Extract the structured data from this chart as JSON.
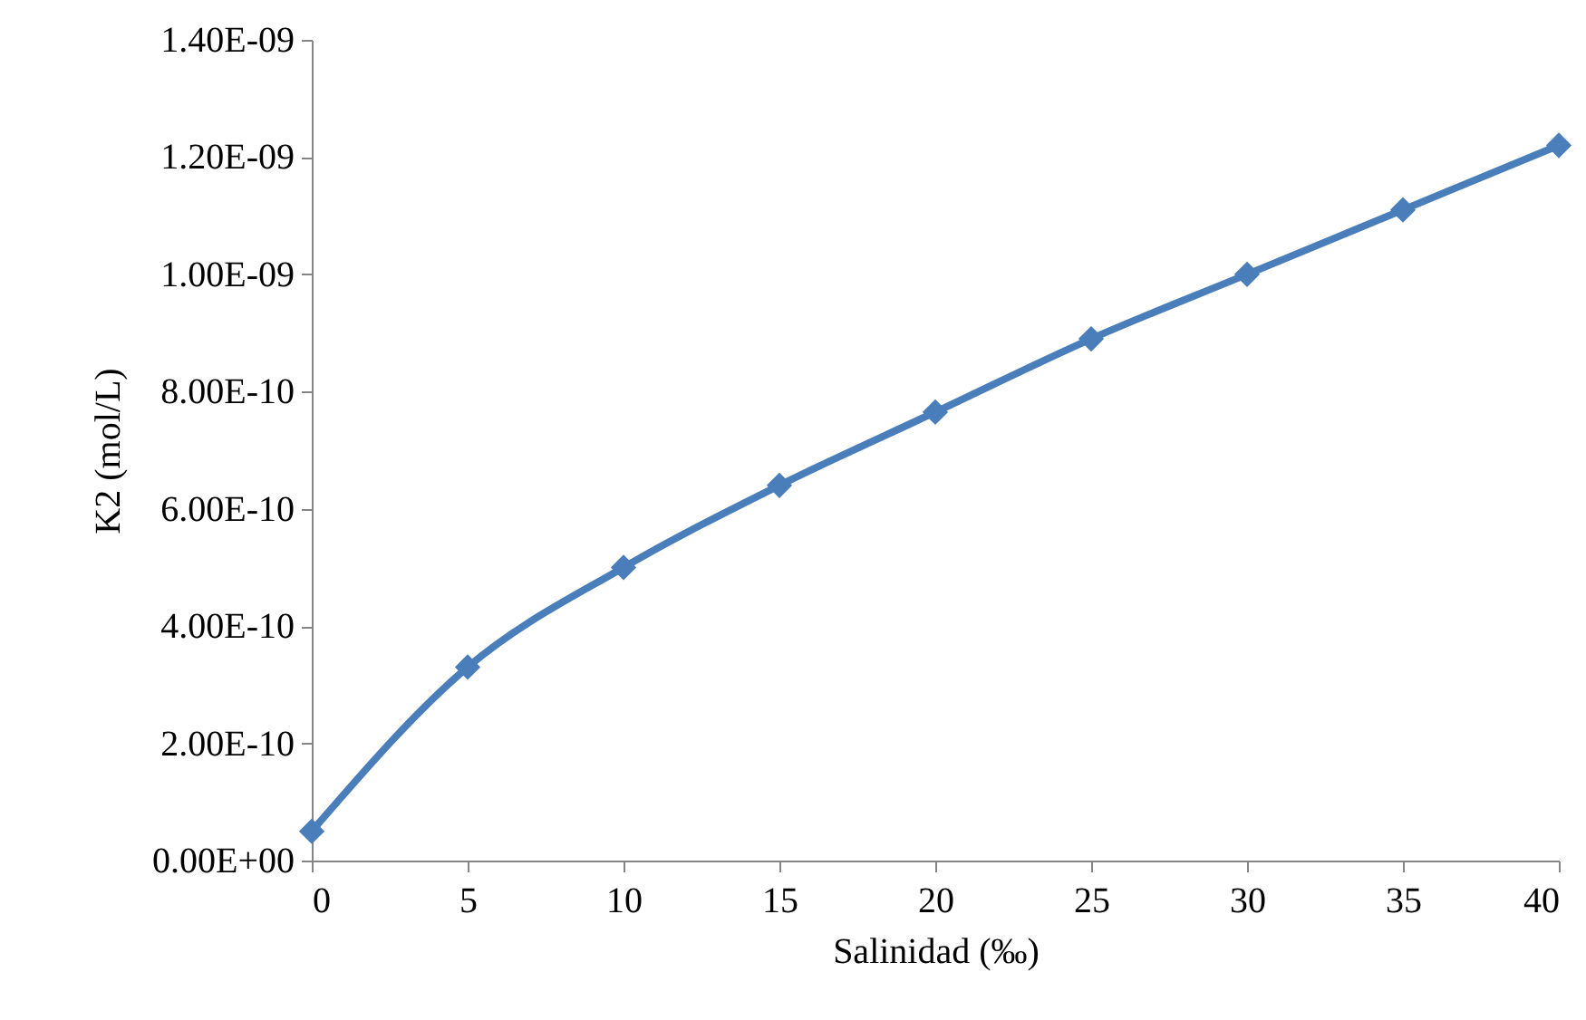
{
  "chart_data": {
    "type": "line",
    "xlabel": "Salinidad (‰)",
    "ylabel": "K2 (mol/L)",
    "x": [
      0,
      5,
      10,
      15,
      20,
      25,
      30,
      35,
      40
    ],
    "series": [
      {
        "color": "#4a7ebb",
        "values": [
          5e-11,
          3.3e-10,
          5e-10,
          6.4e-10,
          7.65e-10,
          8.9e-10,
          1e-09,
          1.11e-09,
          1.22e-09
        ]
      }
    ],
    "xlim": [
      0,
      40
    ],
    "xticks": [
      0,
      5,
      10,
      15,
      20,
      25,
      30,
      35,
      40
    ],
    "ylim": [
      0,
      1.4e-09
    ],
    "yticks": [
      {
        "value": 0,
        "label": "0.00E+00"
      },
      {
        "value": 2e-10,
        "label": "2.00E-10"
      },
      {
        "value": 4e-10,
        "label": "4.00E-10"
      },
      {
        "value": 6e-10,
        "label": "6.00E-10"
      },
      {
        "value": 8e-10,
        "label": "8.00E-10"
      },
      {
        "value": 1e-09,
        "label": "1.00E-09"
      },
      {
        "value": 1.2e-09,
        "label": "1.20E-09"
      },
      {
        "value": 1.4e-09,
        "label": "1.40E-09"
      }
    ],
    "marker": "diamond",
    "line_style": "solid",
    "grid": false,
    "legend": false
  }
}
